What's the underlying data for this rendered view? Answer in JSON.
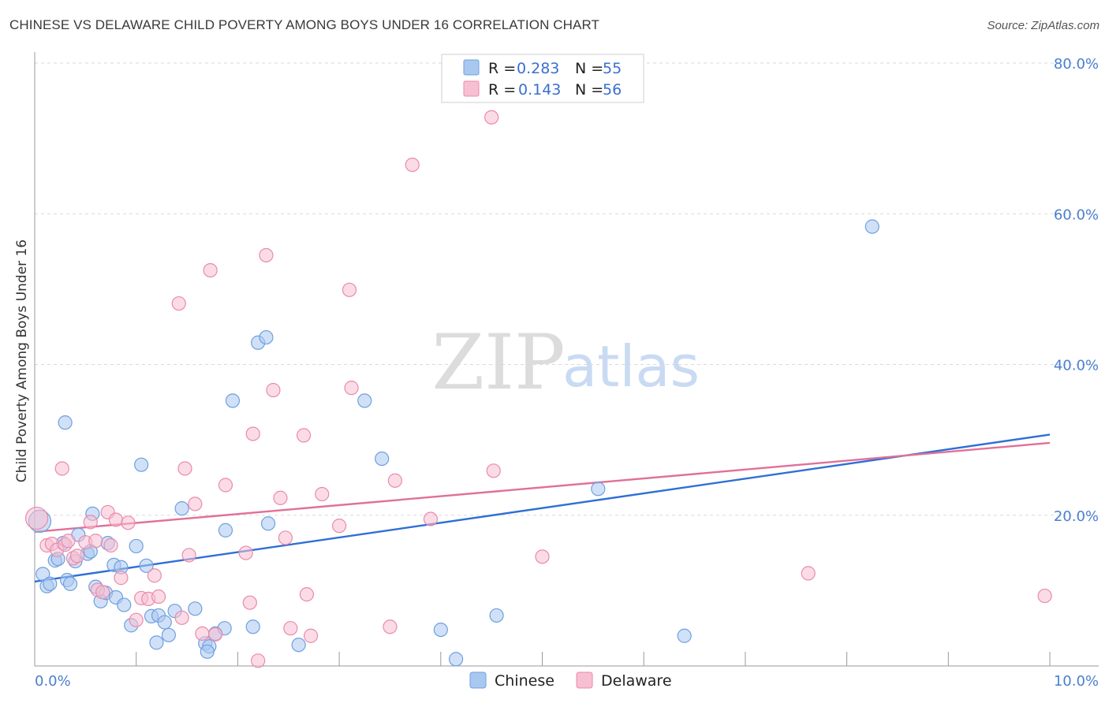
{
  "title": "CHINESE VS DELAWARE CHILD POVERTY AMONG BOYS UNDER 16 CORRELATION CHART",
  "source": "Source: ZipAtlas.com",
  "watermark": {
    "zip": "ZIP",
    "atlas": "atlas"
  },
  "colors": {
    "chinese_fill": "#a9c8f0",
    "chinese_stroke": "#6f9fe0",
    "chinese_line": "#2f6fd6",
    "delaware_fill": "#f7c0d2",
    "delaware_stroke": "#ea8aab",
    "delaware_line": "#e07099",
    "grid": "#d9d9d9",
    "tick": "#4a7fd0"
  },
  "legend": {
    "r_label": "R =",
    "n_label": "N =",
    "rows": [
      {
        "series": "Chinese",
        "r": "0.283",
        "n": "55"
      },
      {
        "series": "Delaware",
        "r": "0.143",
        "n": "56"
      }
    ]
  },
  "chart_data": {
    "type": "scatter",
    "title": "CHINESE VS DELAWARE CHILD POVERTY AMONG BOYS UNDER 16 CORRELATION CHART",
    "xlabel": "",
    "ylabel": "Child Poverty Among Boys Under 16",
    "xlim": [
      0,
      10
    ],
    "ylim": [
      0,
      80
    ],
    "x_tick_labels": [
      "0.0%",
      "10.0%"
    ],
    "y_ticks": [
      20,
      40,
      60,
      80
    ],
    "y_tick_labels": [
      "20.0%",
      "40.0%",
      "60.0%",
      "80.0%"
    ],
    "grid": true,
    "legend_position": "top-center",
    "series": [
      {
        "name": "Chinese",
        "trend": {
          "x": [
            0,
            10
          ],
          "y": [
            11.2,
            30.7
          ]
        },
        "points": [
          [
            0.05,
            19.2
          ],
          [
            0.08,
            12.2
          ],
          [
            0.12,
            10.6
          ],
          [
            0.15,
            10.9
          ],
          [
            0.2,
            14.0
          ],
          [
            0.23,
            14.2
          ],
          [
            0.28,
            16.3
          ],
          [
            0.32,
            11.4
          ],
          [
            0.35,
            10.9
          ],
          [
            0.4,
            13.9
          ],
          [
            0.43,
            17.4
          ],
          [
            0.52,
            14.9
          ],
          [
            0.57,
            20.2
          ],
          [
            0.6,
            10.5
          ],
          [
            0.65,
            8.6
          ],
          [
            0.7,
            9.7
          ],
          [
            0.72,
            16.3
          ],
          [
            0.78,
            13.4
          ],
          [
            0.8,
            9.1
          ],
          [
            0.85,
            13.1
          ],
          [
            0.88,
            8.1
          ],
          [
            0.95,
            5.4
          ],
          [
            1.0,
            15.9
          ],
          [
            1.05,
            26.7
          ],
          [
            1.1,
            13.3
          ],
          [
            1.15,
            6.6
          ],
          [
            1.2,
            3.1
          ],
          [
            1.22,
            6.7
          ],
          [
            1.28,
            5.8
          ],
          [
            1.32,
            4.1
          ],
          [
            1.38,
            7.3
          ],
          [
            1.45,
            20.9
          ],
          [
            1.58,
            7.6
          ],
          [
            1.68,
            3.0
          ],
          [
            1.72,
            2.6
          ],
          [
            1.7,
            1.9
          ],
          [
            1.78,
            4.3
          ],
          [
            1.88,
            18.0
          ],
          [
            1.87,
            5.0
          ],
          [
            1.95,
            35.2
          ],
          [
            2.15,
            5.2
          ],
          [
            2.2,
            42.9
          ],
          [
            2.28,
            43.6
          ],
          [
            2.3,
            18.9
          ],
          [
            2.6,
            2.8
          ],
          [
            3.25,
            35.2
          ],
          [
            3.42,
            27.5
          ],
          [
            4.0,
            4.8
          ],
          [
            4.15,
            0.9
          ],
          [
            4.55,
            6.7
          ],
          [
            5.55,
            23.5
          ],
          [
            6.4,
            4.0
          ],
          [
            8.25,
            58.3
          ],
          [
            0.3,
            32.3
          ],
          [
            0.55,
            15.2
          ]
        ]
      },
      {
        "name": "Delaware",
        "trend": {
          "x": [
            0,
            10
          ],
          "y": [
            17.8,
            29.6
          ]
        },
        "points": [
          [
            0.02,
            19.6
          ],
          [
            0.12,
            16.0
          ],
          [
            0.17,
            16.2
          ],
          [
            0.22,
            15.4
          ],
          [
            0.27,
            26.2
          ],
          [
            0.3,
            16.1
          ],
          [
            0.33,
            16.6
          ],
          [
            0.38,
            14.3
          ],
          [
            0.42,
            14.6
          ],
          [
            0.5,
            16.4
          ],
          [
            0.55,
            19.1
          ],
          [
            0.6,
            16.6
          ],
          [
            0.62,
            10.1
          ],
          [
            0.67,
            9.8
          ],
          [
            0.72,
            20.4
          ],
          [
            0.75,
            16.0
          ],
          [
            0.8,
            19.4
          ],
          [
            0.85,
            11.7
          ],
          [
            0.92,
            19.0
          ],
          [
            1.0,
            6.1
          ],
          [
            1.05,
            9.0
          ],
          [
            1.12,
            8.9
          ],
          [
            1.18,
            12.0
          ],
          [
            1.22,
            9.2
          ],
          [
            1.42,
            48.1
          ],
          [
            1.45,
            6.4
          ],
          [
            1.48,
            26.2
          ],
          [
            1.52,
            14.7
          ],
          [
            1.58,
            21.5
          ],
          [
            1.65,
            4.3
          ],
          [
            1.73,
            52.5
          ],
          [
            1.78,
            4.2
          ],
          [
            1.88,
            24.0
          ],
          [
            2.08,
            15.0
          ],
          [
            2.12,
            8.4
          ],
          [
            2.15,
            30.8
          ],
          [
            2.2,
            0.7
          ],
          [
            2.28,
            54.5
          ],
          [
            2.35,
            36.6
          ],
          [
            2.42,
            22.3
          ],
          [
            2.47,
            17.0
          ],
          [
            2.52,
            5.0
          ],
          [
            2.65,
            30.6
          ],
          [
            2.68,
            9.5
          ],
          [
            2.72,
            4.0
          ],
          [
            2.83,
            22.8
          ],
          [
            3.0,
            18.6
          ],
          [
            3.1,
            49.9
          ],
          [
            3.12,
            36.9
          ],
          [
            3.5,
            5.2
          ],
          [
            3.55,
            24.6
          ],
          [
            3.72,
            66.5
          ],
          [
            3.9,
            19.5
          ],
          [
            4.5,
            72.8
          ],
          [
            4.52,
            25.9
          ],
          [
            5.0,
            14.5
          ]
        ]
      }
    ],
    "extra_points": {
      "Delaware": [
        [
          7.62,
          12.3
        ],
        [
          9.95,
          9.3
        ]
      ]
    }
  },
  "bottom_legend": [
    {
      "series": "Chinese"
    },
    {
      "series": "Delaware"
    }
  ],
  "x_axis_labels": {
    "left": "0.0%",
    "right": "10.0%"
  }
}
